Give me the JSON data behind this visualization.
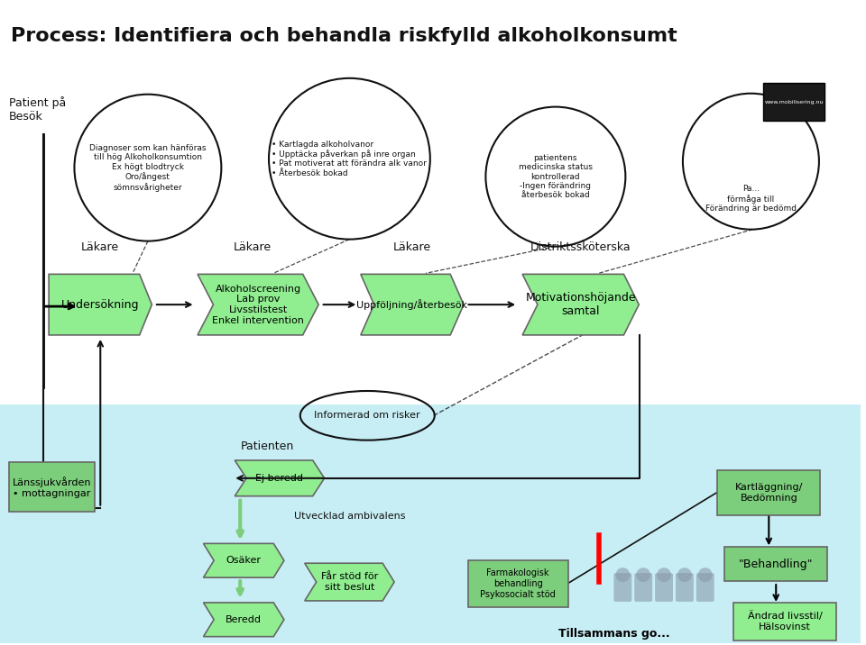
{
  "title": "Process: Identifiera och behandla riskfylld alkoholkonsumt",
  "bg_color": "#ffffff",
  "green_light": "#90EE90",
  "green2": "#7CCD7C",
  "cyan_bg": "#C8EEF5",
  "outline": "#666666",
  "black": "#111111",
  "circle1_text": "Diagnoser som kan hänföras\ntill hög Alkoholkonsumtion\nEx högt blodtryck\nOro/ångest\nsömnsvårigheter",
  "circle2_text": "• Kartlagda alkoholvanor\n• Upptäcka påverkan på inre organ\n• Pat motiverat att förändra alk vanor\n• Återbesök bokad",
  "circle3_text": "patientens\nmedicinska status\nkontrollerad\n-Ingen förändring\nåterbesök bokad",
  "circle4_text": "Pa...\nförmåga till\nFörändring är bedömd"
}
